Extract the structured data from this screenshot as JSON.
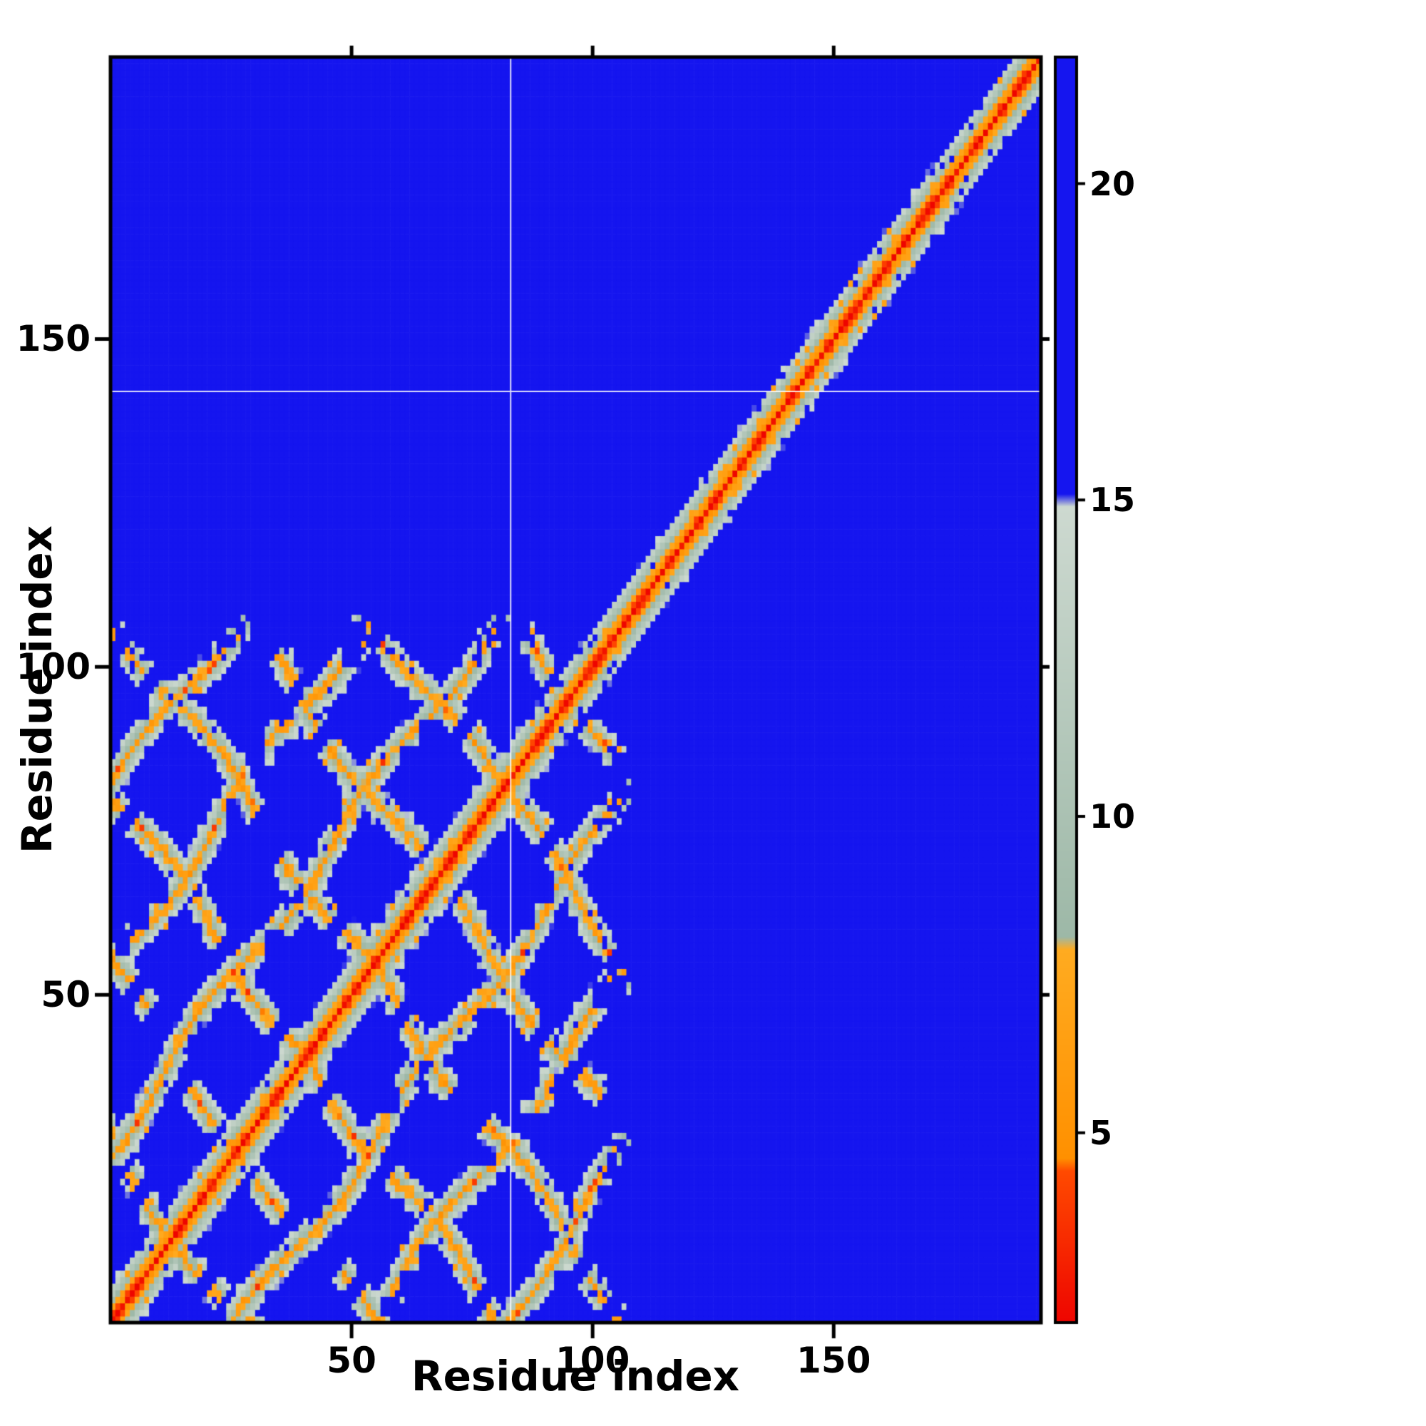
{
  "figure": {
    "background": "#ffffff",
    "kind": "protein residue-residue distance map with colorbar"
  },
  "chart_data": {
    "type": "heatmap",
    "title": "",
    "xlabel": "Residue index",
    "ylabel": "Residue index",
    "axes_range": [
      0,
      193
    ],
    "n_residues": 193,
    "x_ticks": [
      50,
      100,
      150
    ],
    "y_ticks": [
      50,
      100,
      150
    ],
    "grid": false,
    "legend_position": "none",
    "colorbar": {
      "side": "right",
      "vmin": 2,
      "vmax": 22,
      "ticks": [
        5,
        10,
        15,
        20
      ],
      "gradient_stops": [
        [
          2.0,
          "#ee0500"
        ],
        [
          4.4,
          "#ff4a00"
        ],
        [
          4.6,
          "#ff9000"
        ],
        [
          7.9,
          "#ffab20"
        ],
        [
          8.1,
          "#9db8a7"
        ],
        [
          14.9,
          "#cdd9d0"
        ],
        [
          15.1,
          "#1515ef"
        ],
        [
          22.0,
          "#1515ef"
        ]
      ]
    },
    "palette": {
      "far_blue": "#1515ef",
      "mid_sage": "#aec3b4",
      "near_orange": "#ff9000",
      "contact_red": "#ee0500",
      "frame_black": "#000000"
    },
    "matrix_model": {
      "description": "Symmetric Ca-Ca distance matrix (values in colorbar units, capped 2-22). Red main diagonal with orange/sage halo over full range 0-193; dense lattice of parallel and anti-parallel contact streaks (repeat-protein cross-hatch) confined to residues 0-~104; clean diagonal band beyond residue ~104; blue background = far contacts.",
      "diag_base": 2.3,
      "diag_slope": 2.2,
      "repeat_region_max": 104,
      "repeat_period": 27,
      "parallel_offsets": [
        27,
        54,
        81
      ],
      "antidiagonal_sums": [
        26,
        53,
        80,
        107,
        134,
        161,
        188
      ],
      "feature_core": 5.6,
      "feature_slope": 2.8,
      "feature_halo": 4.5,
      "wobble_amp": 2.2,
      "wobble_freq": 0.09,
      "gap_fraction": 0.25,
      "noise_amp": 1.4,
      "seed": 7
    },
    "crosshair": {
      "x": 83,
      "y": 142,
      "color": "#ffffff"
    }
  }
}
